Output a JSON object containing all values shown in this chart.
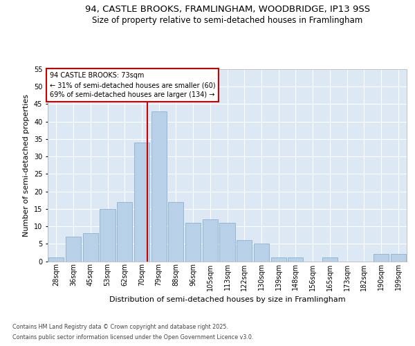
{
  "title_line1": "94, CASTLE BROOKS, FRAMLINGHAM, WOODBRIDGE, IP13 9SS",
  "title_line2": "Size of property relative to semi-detached houses in Framlingham",
  "xlabel": "Distribution of semi-detached houses by size in Framlingham",
  "ylabel": "Number of semi-detached properties",
  "categories": [
    "28sqm",
    "36sqm",
    "45sqm",
    "53sqm",
    "62sqm",
    "70sqm",
    "79sqm",
    "88sqm",
    "96sqm",
    "105sqm",
    "113sqm",
    "122sqm",
    "130sqm",
    "139sqm",
    "148sqm",
    "156sqm",
    "165sqm",
    "173sqm",
    "182sqm",
    "190sqm",
    "199sqm"
  ],
  "values": [
    1,
    7,
    8,
    15,
    17,
    34,
    43,
    17,
    11,
    12,
    11,
    6,
    5,
    1,
    1,
    0,
    1,
    0,
    0,
    2,
    2
  ],
  "bar_color": "#b8d0e8",
  "bar_edge_color": "#8ab0d0",
  "vline_color": "#cc0000",
  "annotation_title": "94 CASTLE BROOKS: 73sqm",
  "annotation_line1": "← 31% of semi-detached houses are smaller (60)",
  "annotation_line2": "69% of semi-detached houses are larger (134) →",
  "annotation_box_color": "#ffffff",
  "annotation_box_edge_color": "#cc0000",
  "ylim": [
    0,
    55
  ],
  "yticks": [
    0,
    5,
    10,
    15,
    20,
    25,
    30,
    35,
    40,
    45,
    50,
    55
  ],
  "background_color": "#dde8f5",
  "grid_color": "#ffffff",
  "fig_background_color": "#ffffff",
  "footer_line1": "Contains HM Land Registry data © Crown copyright and database right 2025.",
  "footer_line2": "Contains public sector information licensed under the Open Government Licence v3.0.",
  "title_fontsize": 9.5,
  "subtitle_fontsize": 8.5,
  "axis_label_fontsize": 8,
  "tick_fontsize": 7,
  "annotation_fontsize": 7,
  "footer_fontsize": 5.8
}
